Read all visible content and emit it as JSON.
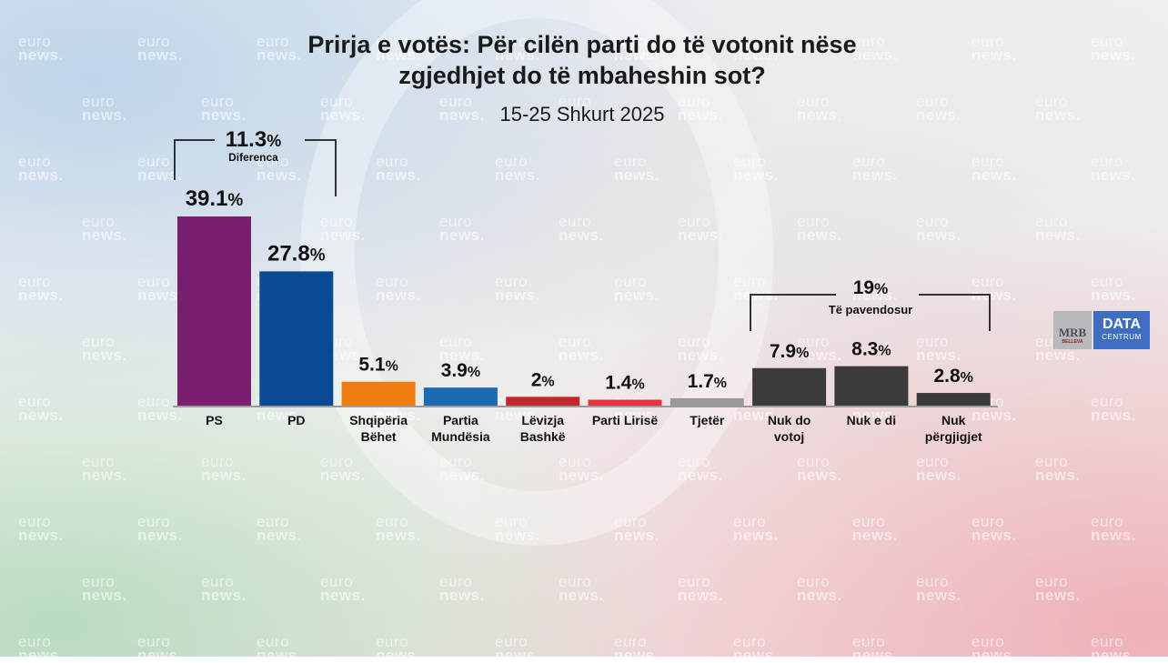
{
  "title_line1": "Prirja e votës: Për cilën parti do të votonit nëse",
  "title_line2": "zgjedhjet do të mbaheshin sot?",
  "subtitle": "15-25 Shkurt 2025",
  "watermark": {
    "line1": "euro",
    "line2": "news."
  },
  "logo": {
    "mrb": "MRB",
    "mrb_small": "BELLEVA",
    "data": "DATA",
    "centrum": "CENTRUM"
  },
  "colors": {
    "PS": "#7a1f6f",
    "PD": "#0a4a93",
    "Shqipëria Bëhet": "#f07d12",
    "Partia Mundësia": "#1b6bb0",
    "Lëvizja Bashkë": "#c0282e",
    "Parti Lirisë": "#e8333e",
    "Tjetër": "#9a9a9a",
    "undecided": "#3b3b3b"
  },
  "chart_data": {
    "type": "bar",
    "title": "Prirja e votës: Për cilën parti do të votonit nëse zgjedhjet do të mbaheshin sot?",
    "subtitle": "15-25 Shkurt 2025",
    "categories": [
      "PS",
      "PD",
      "Shqipëria Bëhet",
      "Partia Mundësia",
      "Lëvizja Bashkë",
      "Parti Lirisë",
      "Tjetër",
      "Nuk do votoj",
      "Nuk e di",
      "Nuk përgjigjet"
    ],
    "category_lines": [
      [
        "PS"
      ],
      [
        "PD"
      ],
      [
        "Shqipëria",
        "Bëhet"
      ],
      [
        "Partia",
        "Mundësia"
      ],
      [
        "Lëvizja",
        "Bashkë"
      ],
      [
        "Parti Lirisë"
      ],
      [
        "Tjetër"
      ],
      [
        "Nuk do",
        "votoj"
      ],
      [
        "Nuk e di"
      ],
      [
        "Nuk",
        "përgjigjet"
      ]
    ],
    "values": [
      39.1,
      27.8,
      5.1,
      3.9,
      2,
      1.4,
      1.7,
      7.9,
      8.3,
      2.8
    ],
    "value_labels": [
      "39.1",
      "27.8",
      "5.1",
      "3.9",
      "2",
      "1.4",
      "1.7",
      "7.9",
      "8.3",
      "2.8"
    ],
    "unit": "%",
    "color_keys": [
      "PS",
      "PD",
      "Shqipëria Bëhet",
      "Partia Mundësia",
      "Lëvizja Bashkë",
      "Parti Lirisë",
      "Tjetër",
      "undecided",
      "undecided",
      "undecided"
    ],
    "ylim": [
      0,
      40
    ],
    "grid": false,
    "annotations": [
      {
        "value": "11.3",
        "unit": "%",
        "label": "Diferenca",
        "from": 0,
        "to": 1
      },
      {
        "value": "19",
        "unit": "%",
        "label": "Të pavendosur",
        "from": 7,
        "to": 9
      }
    ]
  }
}
